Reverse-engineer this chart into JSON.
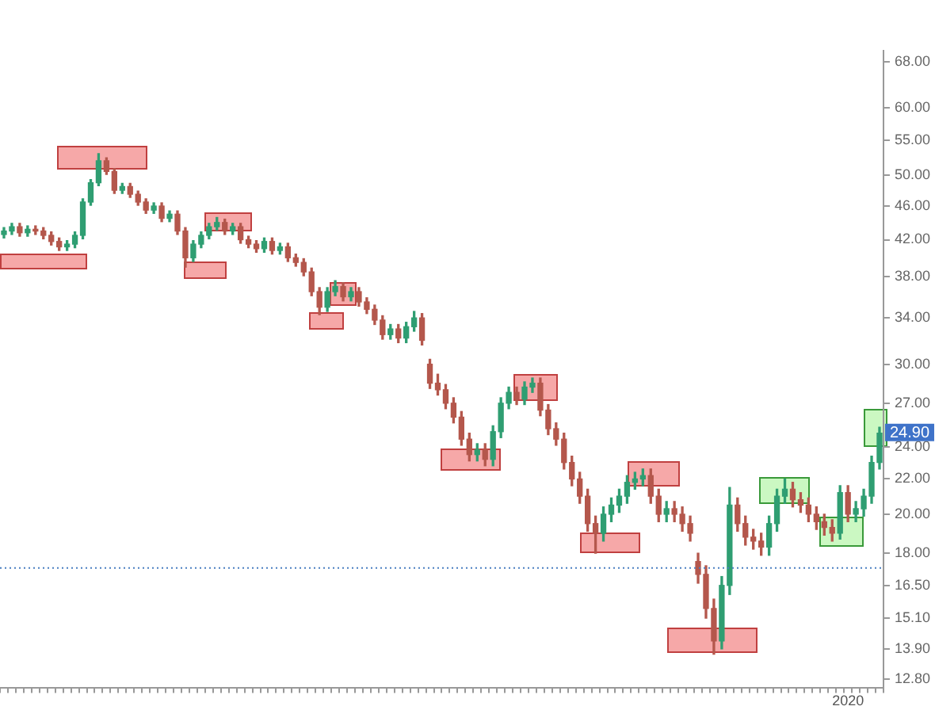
{
  "chart_data": {
    "type": "candlestick",
    "categories": [
      null,
      null,
      null,
      null,
      null,
      null,
      null,
      null,
      null,
      null,
      null,
      null,
      null,
      null,
      null,
      null,
      null,
      null,
      null,
      null,
      null,
      null,
      null,
      null,
      null,
      null,
      null,
      null,
      null,
      null,
      null,
      null,
      null,
      null,
      null,
      null,
      null,
      null,
      null,
      null,
      null,
      null,
      null,
      null,
      null,
      null,
      null,
      null,
      null,
      null,
      null,
      null,
      null,
      null,
      null,
      null,
      null,
      null,
      null,
      null,
      null,
      null,
      null,
      null,
      null,
      null,
      null,
      null,
      null,
      null,
      null,
      null,
      null,
      null,
      null,
      null,
      null,
      null,
      null,
      null,
      null,
      null,
      null,
      null,
      null,
      null,
      null,
      null,
      null,
      null,
      null,
      null,
      null,
      null,
      null,
      null,
      null,
      null,
      null,
      null,
      null,
      null,
      null,
      null,
      null,
      null,
      null,
      "2020",
      null,
      null,
      null,
      null
    ],
    "ohlc": [
      [
        42.6,
        43.4,
        42.2,
        43.0
      ],
      [
        43.0,
        43.9,
        42.6,
        43.5
      ],
      [
        43.5,
        43.9,
        42.4,
        42.8
      ],
      [
        42.8,
        43.6,
        42.4,
        43.2
      ],
      [
        43.2,
        43.6,
        42.6,
        43.0
      ],
      [
        43.0,
        43.4,
        42.1,
        42.5
      ],
      [
        42.5,
        42.9,
        41.4,
        41.8
      ],
      [
        41.8,
        42.2,
        40.8,
        41.2
      ],
      [
        41.2,
        41.9,
        40.8,
        41.5
      ],
      [
        41.5,
        42.9,
        41.1,
        42.5
      ],
      [
        42.5,
        46.9,
        42.1,
        46.5
      ],
      [
        46.5,
        49.4,
        46.1,
        49.0
      ],
      [
        49.0,
        53.0,
        48.6,
        52.0
      ],
      [
        52.0,
        52.4,
        50.1,
        50.5
      ],
      [
        50.5,
        50.9,
        47.6,
        48.0
      ],
      [
        48.0,
        48.9,
        47.6,
        48.5
      ],
      [
        48.5,
        48.9,
        47.1,
        47.5
      ],
      [
        47.5,
        47.9,
        46.1,
        46.5
      ],
      [
        46.5,
        46.9,
        45.1,
        45.5
      ],
      [
        45.5,
        46.4,
        45.1,
        46.0
      ],
      [
        46.0,
        46.4,
        44.1,
        44.5
      ],
      [
        44.5,
        45.4,
        44.1,
        45.0
      ],
      [
        45.0,
        45.4,
        42.6,
        43.0
      ],
      [
        43.0,
        43.4,
        39.0,
        40.0
      ],
      [
        40.0,
        41.9,
        39.6,
        41.5
      ],
      [
        41.5,
        42.9,
        41.1,
        42.5
      ],
      [
        42.5,
        43.9,
        42.1,
        43.5
      ],
      [
        43.5,
        44.6,
        43.1,
        44.0
      ],
      [
        44.0,
        44.4,
        42.6,
        43.0
      ],
      [
        43.0,
        43.9,
        42.6,
        43.5
      ],
      [
        43.5,
        43.9,
        41.6,
        42.0
      ],
      [
        42.0,
        42.4,
        41.1,
        41.5
      ],
      [
        41.5,
        41.9,
        40.6,
        41.0
      ],
      [
        41.0,
        42.2,
        40.6,
        41.8
      ],
      [
        41.8,
        42.2,
        40.4,
        40.8
      ],
      [
        40.8,
        41.6,
        40.4,
        41.2
      ],
      [
        41.2,
        41.6,
        39.6,
        40.0
      ],
      [
        40.0,
        40.4,
        39.1,
        39.5
      ],
      [
        39.5,
        39.9,
        38.1,
        38.5
      ],
      [
        38.5,
        38.9,
        36.1,
        36.5
      ],
      [
        36.5,
        36.9,
        34.3,
        35.0
      ],
      [
        35.0,
        36.9,
        34.6,
        36.5
      ],
      [
        36.5,
        37.6,
        36.1,
        37.0
      ],
      [
        37.0,
        37.4,
        35.6,
        36.0
      ],
      [
        36.0,
        36.9,
        35.6,
        36.5
      ],
      [
        36.5,
        36.9,
        35.1,
        35.5
      ],
      [
        35.5,
        35.9,
        34.4,
        34.8
      ],
      [
        34.8,
        35.2,
        33.4,
        33.8
      ],
      [
        33.8,
        34.2,
        32.1,
        32.5
      ],
      [
        32.5,
        33.4,
        32.1,
        33.0
      ],
      [
        33.0,
        33.4,
        31.8,
        32.2
      ],
      [
        32.2,
        33.6,
        31.8,
        33.2
      ],
      [
        33.2,
        34.6,
        32.8,
        34.0
      ],
      [
        34.0,
        34.4,
        31.6,
        32.0
      ],
      [
        30.0,
        30.4,
        28.1,
        28.5
      ],
      [
        28.5,
        29.2,
        27.6,
        28.0
      ],
      [
        28.0,
        28.4,
        26.6,
        27.0
      ],
      [
        27.0,
        27.4,
        25.6,
        26.0
      ],
      [
        26.0,
        26.4,
        24.1,
        24.5
      ],
      [
        24.5,
        24.9,
        23.1,
        23.5
      ],
      [
        23.5,
        24.2,
        23.1,
        23.8
      ],
      [
        23.8,
        24.2,
        22.8,
        23.2
      ],
      [
        23.2,
        25.4,
        22.8,
        25.0
      ],
      [
        25.0,
        27.4,
        24.6,
        27.0
      ],
      [
        27.0,
        28.2,
        26.6,
        27.8
      ],
      [
        27.8,
        28.2,
        26.9,
        27.3
      ],
      [
        27.3,
        28.6,
        26.9,
        28.2
      ],
      [
        28.2,
        28.9,
        27.8,
        28.5
      ],
      [
        28.5,
        28.9,
        26.1,
        26.5
      ],
      [
        26.5,
        26.9,
        24.8,
        25.2
      ],
      [
        25.2,
        25.6,
        24.1,
        24.5
      ],
      [
        24.5,
        24.9,
        22.6,
        23.0
      ],
      [
        23.0,
        23.4,
        21.6,
        22.0
      ],
      [
        22.0,
        22.4,
        20.6,
        21.0
      ],
      [
        21.0,
        21.4,
        19.1,
        19.5
      ],
      [
        19.5,
        19.9,
        18.0,
        19.0
      ],
      [
        19.0,
        20.4,
        18.6,
        20.0
      ],
      [
        20.0,
        20.9,
        19.6,
        20.5
      ],
      [
        20.5,
        21.4,
        20.1,
        21.0
      ],
      [
        21.0,
        22.2,
        20.6,
        21.8
      ],
      [
        21.8,
        22.4,
        21.4,
        22.0
      ],
      [
        22.0,
        22.6,
        21.6,
        22.2
      ],
      [
        22.2,
        22.6,
        20.6,
        21.0
      ],
      [
        21.0,
        21.4,
        19.6,
        20.0
      ],
      [
        20.0,
        20.7,
        19.6,
        20.3
      ],
      [
        20.3,
        20.7,
        19.6,
        20.0
      ],
      [
        20.0,
        20.4,
        19.1,
        19.5
      ],
      [
        19.5,
        19.9,
        18.6,
        19.0
      ],
      [
        17.6,
        18.0,
        16.6,
        17.0
      ],
      [
        17.0,
        17.4,
        15.1,
        15.5
      ],
      [
        15.5,
        15.9,
        13.7,
        14.2
      ],
      [
        14.2,
        16.9,
        13.9,
        16.5
      ],
      [
        16.5,
        21.5,
        16.1,
        20.5
      ],
      [
        20.5,
        20.9,
        19.1,
        19.5
      ],
      [
        19.5,
        19.9,
        18.4,
        18.8
      ],
      [
        18.8,
        19.2,
        18.2,
        18.6
      ],
      [
        18.6,
        19.0,
        17.9,
        18.3
      ],
      [
        18.3,
        19.9,
        17.9,
        19.5
      ],
      [
        19.5,
        21.4,
        19.1,
        21.0
      ],
      [
        21.0,
        22.0,
        20.6,
        21.4
      ],
      [
        21.4,
        21.8,
        20.4,
        20.8
      ],
      [
        20.8,
        21.2,
        20.1,
        20.5
      ],
      [
        20.5,
        20.9,
        19.6,
        20.0
      ],
      [
        20.0,
        20.4,
        19.2,
        19.6
      ],
      [
        19.6,
        20.0,
        18.9,
        19.3
      ],
      [
        19.3,
        19.7,
        18.6,
        19.0
      ],
      [
        19.0,
        21.6,
        18.7,
        21.2
      ],
      [
        21.2,
        21.6,
        19.6,
        20.0
      ],
      [
        20.0,
        20.7,
        19.6,
        20.3
      ],
      [
        20.3,
        21.4,
        19.9,
        21.0
      ],
      [
        21.0,
        23.4,
        20.6,
        23.0
      ],
      [
        23.0,
        25.3,
        22.6,
        24.9
      ]
    ],
    "log": true,
    "ylim": [
      12.5,
      70
    ],
    "yticks": [
      {
        "value": 68,
        "label": "68.00"
      },
      {
        "value": 60,
        "label": "60.00"
      },
      {
        "value": 55,
        "label": "55.00"
      },
      {
        "value": 50,
        "label": "50.00"
      },
      {
        "value": 46,
        "label": "46.00"
      },
      {
        "value": 42,
        "label": "42.00"
      },
      {
        "value": 38,
        "label": "38.00"
      },
      {
        "value": 34,
        "label": "34.00"
      },
      {
        "value": 30,
        "label": "30.00"
      },
      {
        "value": 27,
        "label": "27.00"
      },
      {
        "value": 24,
        "label": "24.00"
      },
      {
        "value": 22,
        "label": "22.00"
      },
      {
        "value": 20,
        "label": "20.00"
      },
      {
        "value": 18,
        "label": "18.00"
      },
      {
        "value": 16.5,
        "label": "16.50"
      },
      {
        "value": 15.1,
        "label": "15.10"
      },
      {
        "value": 13.9,
        "label": "13.90"
      },
      {
        "value": 12.8,
        "label": "12.80"
      }
    ],
    "ref_lines": [
      {
        "axis": "y",
        "value": 17.3,
        "color": "#4a7fc1",
        "line_style": "dotted"
      }
    ],
    "annotations": [
      {
        "text": "24.90",
        "y": 24.9
      }
    ],
    "grid": false,
    "legend": false
  }
}
